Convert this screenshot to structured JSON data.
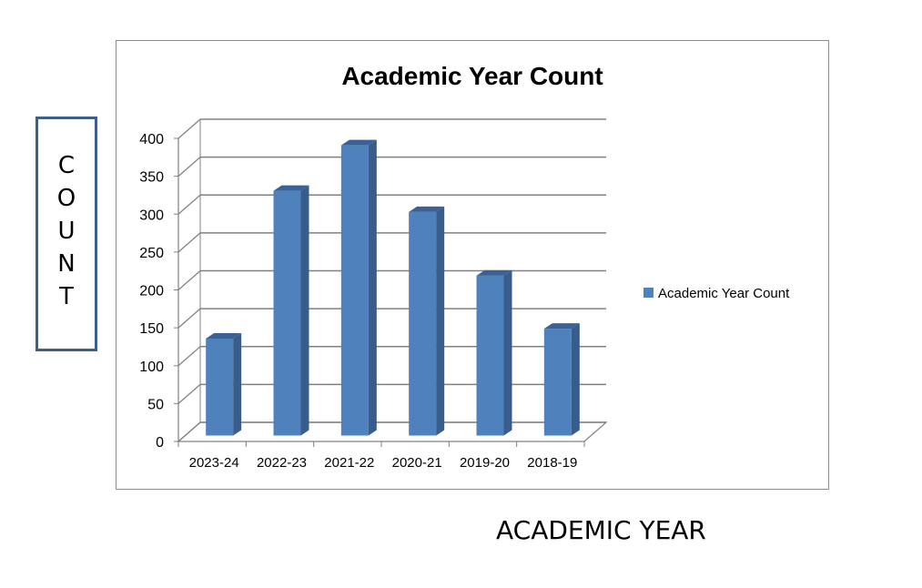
{
  "chart_data": {
    "type": "bar",
    "title": "Academic Year Count",
    "xlabel": "ACADEMIC YEAR",
    "ylabel": "COUNT",
    "categories": [
      "2023-24",
      "2022-23",
      "2021-22",
      "2020-21",
      "2019-20",
      "2018-19"
    ],
    "series": [
      {
        "name": "Academic Year Count",
        "values": [
          128,
          323,
          383,
          295,
          211,
          141
        ]
      }
    ],
    "ylim": [
      0,
      400
    ],
    "yticks": [
      0,
      50,
      100,
      150,
      200,
      250,
      300,
      350,
      400
    ],
    "grid": true,
    "legend_position": "right",
    "style": "3d-column",
    "colors": {
      "bar_front": "#4f81bd",
      "bar_side": "#385d8a",
      "bar_top": "#3a6296",
      "grid": "#808080"
    }
  }
}
